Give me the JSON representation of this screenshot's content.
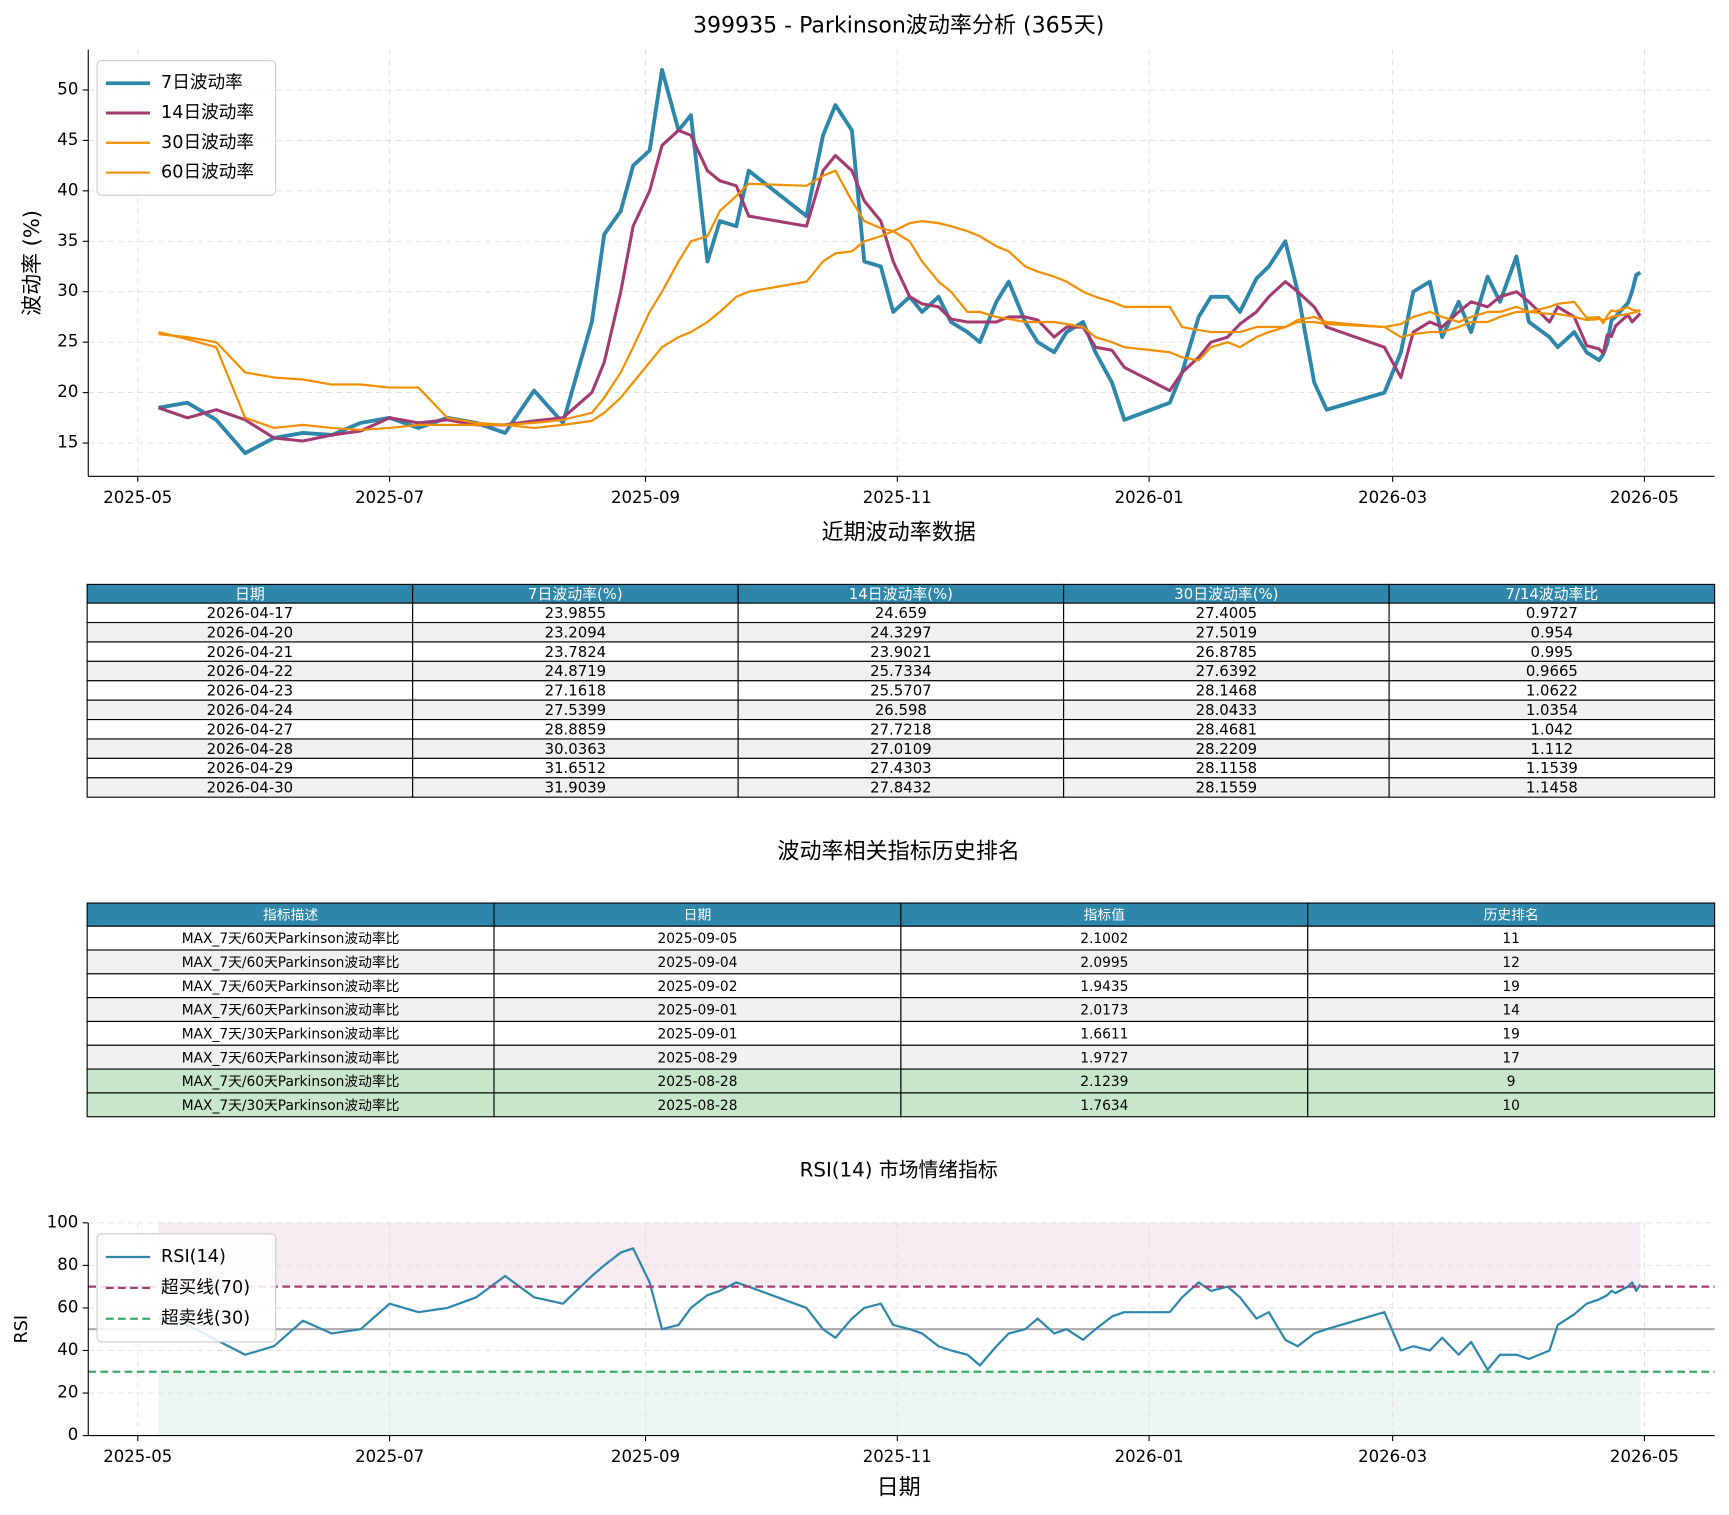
{
  "chart_data": [
    {
      "type": "line",
      "title": "399935 - Parkinson波动率分析 (365天)",
      "y_label": "波动率 (%)",
      "x": [
        "2025-05-06",
        "2025-05-13",
        "2025-05-20",
        "2025-05-27",
        "2025-06-03",
        "2025-06-10",
        "2025-06-17",
        "2025-06-24",
        "2025-07-01",
        "2025-07-08",
        "2025-07-15",
        "2025-07-22",
        "2025-07-29",
        "2025-08-05",
        "2025-08-12",
        "2025-08-19",
        "2025-08-22",
        "2025-08-26",
        "2025-08-29",
        "2025-09-02",
        "2025-09-05",
        "2025-09-09",
        "2025-09-12",
        "2025-09-16",
        "2025-09-19",
        "2025-09-23",
        "2025-09-26",
        "2025-10-10",
        "2025-10-14",
        "2025-10-17",
        "2025-10-21",
        "2025-10-24",
        "2025-10-28",
        "2025-10-31",
        "2025-11-04",
        "2025-11-07",
        "2025-11-11",
        "2025-11-14",
        "2025-11-18",
        "2025-11-21",
        "2025-11-25",
        "2025-11-28",
        "2025-12-02",
        "2025-12-05",
        "2025-12-09",
        "2025-12-12",
        "2025-12-16",
        "2025-12-19",
        "2025-12-23",
        "2025-12-26",
        "2026-01-06",
        "2026-01-09",
        "2026-01-13",
        "2026-01-16",
        "2026-01-20",
        "2026-01-23",
        "2026-01-27",
        "2026-01-30",
        "2026-02-03",
        "2026-02-06",
        "2026-02-10",
        "2026-02-13",
        "2026-02-27",
        "2026-03-03",
        "2026-03-06",
        "2026-03-10",
        "2026-03-13",
        "2026-03-17",
        "2026-03-20",
        "2026-03-24",
        "2026-03-27",
        "2026-03-31",
        "2026-04-03",
        "2026-04-08",
        "2026-04-10",
        "2026-04-14",
        "2026-04-17",
        "2026-04-20",
        "2026-04-21",
        "2026-04-22",
        "2026-04-23",
        "2026-04-24",
        "2026-04-27",
        "2026-04-28",
        "2026-04-29",
        "2026-04-30"
      ],
      "series": [
        {
          "name": "7日波动率",
          "color": "#2e86ab",
          "width": 3.5,
          "values": [
            18.5,
            19,
            17.3,
            14,
            15.5,
            16,
            15.8,
            17,
            17.5,
            16.5,
            17.5,
            17,
            16,
            20.2,
            17,
            27,
            35.7,
            38,
            42.5,
            44,
            52,
            46,
            47.5,
            33,
            37,
            36.5,
            42,
            37.5,
            45.5,
            48.5,
            46,
            33,
            32.5,
            28,
            29.5,
            28,
            29.5,
            27,
            26,
            25,
            29,
            31,
            27,
            25,
            24,
            26,
            27,
            24,
            21,
            17.3,
            19,
            22,
            27.5,
            29.5,
            29.5,
            28,
            31.3,
            32.5,
            35,
            30,
            21,
            18.3,
            20,
            24,
            30,
            31,
            25.5,
            29,
            26,
            31.5,
            29,
            33.5,
            27,
            25.5,
            24.5,
            26,
            23.9855,
            23.2094,
            23.7824,
            24.8719,
            27.1618,
            27.5399,
            28.8859,
            30.0363,
            31.6512,
            31.9039
          ]
        },
        {
          "name": "14日波动率",
          "color": "#a23b72",
          "width": 2.8,
          "values": [
            18.5,
            17.5,
            18.3,
            17.3,
            15.5,
            15.2,
            15.8,
            16.2,
            17.5,
            17,
            17.3,
            16.8,
            16.8,
            17.2,
            17.5,
            20,
            23,
            30,
            36.5,
            40,
            44.5,
            46,
            45.5,
            42,
            41,
            40.5,
            37.5,
            36.5,
            42,
            43.5,
            42,
            39,
            37,
            33,
            29.5,
            28.8,
            28.5,
            27.3,
            27,
            27,
            27,
            27.5,
            27.5,
            27.2,
            25.5,
            26.5,
            26.5,
            24.5,
            24.2,
            22.5,
            20.2,
            22,
            23.5,
            25,
            25.5,
            26.8,
            28,
            29.5,
            31,
            30,
            28.5,
            26.5,
            24.5,
            21.5,
            26,
            27,
            26.5,
            28,
            29,
            28.5,
            29.5,
            30,
            29,
            27,
            28.5,
            27.5,
            24.659,
            24.3297,
            23.9021,
            25.7334,
            25.5707,
            26.598,
            27.7218,
            27.0109,
            27.4303,
            27.8432
          ]
        },
        {
          "name": "30日波动率",
          "color": "#f18f01",
          "width": 2,
          "values": [
            26,
            25.3,
            24.5,
            17.5,
            16.5,
            16.8,
            16.5,
            16.3,
            16.5,
            16.8,
            16.8,
            16.8,
            16.8,
            17,
            17.3,
            18,
            19.5,
            22,
            24.5,
            28,
            30,
            33,
            35,
            35.5,
            38,
            39.5,
            40.7,
            40.5,
            41.5,
            42,
            39,
            37,
            36.3,
            36,
            35,
            33,
            31,
            30,
            28,
            28,
            27.5,
            27.3,
            27,
            27,
            27,
            26.8,
            26.5,
            25.5,
            25,
            24.5,
            24,
            23.5,
            23.2,
            24.5,
            25,
            24.5,
            25.5,
            26,
            26.5,
            27.2,
            27.5,
            27,
            26.5,
            26.8,
            27.5,
            28,
            27.5,
            27,
            27.5,
            28,
            28,
            28.5,
            28,
            28.5,
            28.8,
            29,
            27.4005,
            27.5019,
            26.8785,
            27.6392,
            28.1468,
            28.0433,
            28.4681,
            28.2209,
            28.1158,
            28.1559
          ]
        },
        {
          "name": "60日波动率",
          "color": "#f18f01",
          "width": 2,
          "values": [
            25.8,
            25.5,
            25,
            22,
            21.5,
            21.3,
            20.8,
            20.8,
            20.5,
            20.5,
            17.5,
            17,
            16.8,
            16.5,
            16.8,
            17.2,
            18,
            19.5,
            21,
            23,
            24.5,
            25.5,
            26,
            27,
            28,
            29.5,
            30,
            31,
            33,
            33.8,
            34,
            35,
            35.5,
            36,
            36.8,
            37,
            36.8,
            36.5,
            36,
            35.5,
            34.5,
            34,
            32.5,
            32,
            31.5,
            31,
            30,
            29.5,
            29,
            28.5,
            28.5,
            26.5,
            26.2,
            26,
            26,
            26,
            26.5,
            26.5,
            26.5,
            27,
            27,
            26.8,
            26.5,
            25.5,
            25.8,
            26,
            26,
            26.5,
            27,
            27,
            27.5,
            28,
            28,
            27.8,
            27.8,
            27.5,
            27.2,
            27.3,
            27.2,
            27.3,
            27.5,
            27.6,
            27.8,
            27.9,
            28,
            28.1
          ]
        }
      ],
      "xlim": [
        "2025-04-19",
        "2026-05-18"
      ],
      "xticks": [
        {
          "value": "2025-05-01",
          "label": "2025-05"
        },
        {
          "value": "2025-07-01",
          "label": "2025-07"
        },
        {
          "value": "2025-09-01",
          "label": "2025-09"
        },
        {
          "value": "2025-11-01",
          "label": "2025-11"
        },
        {
          "value": "2026-01-01",
          "label": "2026-01"
        },
        {
          "value": "2026-03-01",
          "label": "2026-03"
        },
        {
          "value": "2026-05-01",
          "label": "2026-05"
        }
      ],
      "ylim": [
        11.7,
        54.0
      ],
      "yticks": [
        15,
        20,
        25,
        30,
        35,
        40,
        45,
        50
      ],
      "grid": true,
      "legend": "upper left"
    },
    {
      "type": "line",
      "title": "RSI(14) 市场情绪指标",
      "x_label": "日期",
      "y_label": "RSI",
      "x": [
        "2025-05-06",
        "2025-05-13",
        "2025-05-20",
        "2025-05-27",
        "2025-06-03",
        "2025-06-10",
        "2025-06-17",
        "2025-06-24",
        "2025-07-01",
        "2025-07-08",
        "2025-07-15",
        "2025-07-22",
        "2025-07-29",
        "2025-08-05",
        "2025-08-12",
        "2025-08-19",
        "2025-08-22",
        "2025-08-26",
        "2025-08-29",
        "2025-09-02",
        "2025-09-05",
        "2025-09-09",
        "2025-09-12",
        "2025-09-16",
        "2025-09-19",
        "2025-09-23",
        "2025-09-26",
        "2025-10-10",
        "2025-10-14",
        "2025-10-17",
        "2025-10-21",
        "2025-10-24",
        "2025-10-28",
        "2025-10-31",
        "2025-11-04",
        "2025-11-07",
        "2025-11-11",
        "2025-11-14",
        "2025-11-18",
        "2025-11-21",
        "2025-11-25",
        "2025-11-28",
        "2025-12-02",
        "2025-12-05",
        "2025-12-09",
        "2025-12-12",
        "2025-12-16",
        "2025-12-19",
        "2025-12-23",
        "2025-12-26",
        "2026-01-06",
        "2026-01-09",
        "2026-01-13",
        "2026-01-16",
        "2026-01-20",
        "2026-01-23",
        "2026-01-27",
        "2026-01-30",
        "2026-02-03",
        "2026-02-06",
        "2026-02-10",
        "2026-02-13",
        "2026-02-27",
        "2026-03-03",
        "2026-03-06",
        "2026-03-10",
        "2026-03-13",
        "2026-03-17",
        "2026-03-20",
        "2026-03-24",
        "2026-03-27",
        "2026-03-31",
        "2026-04-03",
        "2026-04-08",
        "2026-04-10",
        "2026-04-14",
        "2026-04-17",
        "2026-04-20",
        "2026-04-21",
        "2026-04-22",
        "2026-04-23",
        "2026-04-24",
        "2026-04-27",
        "2026-04-28",
        "2026-04-29",
        "2026-04-30"
      ],
      "series": [
        {
          "name": "RSI(14)",
          "color": "#2e86ab",
          "width": 2,
          "values": [
            55,
            52,
            45,
            38,
            42,
            54,
            48,
            50,
            62,
            58,
            60,
            65,
            75,
            65,
            62,
            75,
            80,
            86,
            88,
            72,
            50,
            52,
            60,
            66,
            68,
            72,
            70,
            60,
            50,
            46,
            55,
            60,
            62,
            52,
            50,
            48,
            42,
            40,
            38,
            33,
            42,
            48,
            50,
            55,
            48,
            50,
            45,
            50,
            56,
            58,
            58,
            65,
            72,
            68,
            70,
            65,
            55,
            58,
            45,
            42,
            48,
            50,
            58,
            40,
            42,
            40,
            46,
            38,
            44,
            31,
            38,
            38,
            36,
            40,
            52,
            57,
            62,
            64,
            65,
            66,
            68,
            67,
            70,
            72,
            68,
            71
          ]
        }
      ],
      "hlines": [
        {
          "name": "超买线(70)",
          "value": 70,
          "color": "#a23b72"
        },
        {
          "name": "超卖线(30)",
          "value": 30,
          "color": "#3aaa6a"
        }
      ],
      "midline": 50,
      "bands": [
        {
          "from": 70,
          "to": 100,
          "color": "#a23b72"
        },
        {
          "from": 0,
          "to": 30,
          "color": "#3aaa6a"
        }
      ],
      "xlim": [
        "2025-04-19",
        "2026-05-18"
      ],
      "xticks": [
        {
          "value": "2025-05-01",
          "label": "2025-05"
        },
        {
          "value": "2025-07-01",
          "label": "2025-07"
        },
        {
          "value": "2025-09-01",
          "label": "2025-09"
        },
        {
          "value": "2025-11-01",
          "label": "2025-11"
        },
        {
          "value": "2026-01-01",
          "label": "2026-01"
        },
        {
          "value": "2026-03-01",
          "label": "2026-03"
        },
        {
          "value": "2026-05-01",
          "label": "2026-05"
        }
      ],
      "ylim": [
        0,
        100
      ],
      "yticks": [
        0,
        20,
        40,
        60,
        80,
        100
      ],
      "grid": true,
      "legend": "upper left"
    }
  ],
  "recent_table": {
    "title": "近期波动率数据",
    "header_color": "#2e86ab",
    "columns": [
      "日期",
      "7日波动率(%)",
      "14日波动率(%)",
      "30日波动率(%)",
      "7/14波动率比"
    ],
    "rows": [
      [
        "2026-04-17",
        23.9855,
        24.659,
        27.4005,
        0.9727
      ],
      [
        "2026-04-20",
        23.2094,
        24.3297,
        27.5019,
        0.954
      ],
      [
        "2026-04-21",
        23.7824,
        23.9021,
        26.8785,
        0.995
      ],
      [
        "2026-04-22",
        24.8719,
        25.7334,
        27.6392,
        0.9665
      ],
      [
        "2026-04-23",
        27.1618,
        25.5707,
        28.1468,
        1.0622
      ],
      [
        "2026-04-24",
        27.5399,
        26.598,
        28.0433,
        1.0354
      ],
      [
        "2026-04-27",
        28.8859,
        27.7218,
        28.4681,
        1.042
      ],
      [
        "2026-04-28",
        30.0363,
        27.0109,
        28.2209,
        1.112
      ],
      [
        "2026-04-29",
        31.6512,
        27.4303,
        28.1158,
        1.1539
      ],
      [
        "2026-04-30",
        31.9039,
        27.8432,
        28.1559,
        1.1458
      ]
    ]
  },
  "rank_table": {
    "title": "波动率相关指标历史排名",
    "header_color": "#2e86ab",
    "highlight_color": "#c8e6c9",
    "highlight_rows": [
      6,
      7
    ],
    "columns": [
      "指标描述",
      "日期",
      "指标值",
      "历史排名"
    ],
    "rows": [
      [
        "MAX_7天/60天Parkinson波动率比",
        "2025-09-05",
        2.1002,
        11
      ],
      [
        "MAX_7天/60天Parkinson波动率比",
        "2025-09-04",
        2.0995,
        12
      ],
      [
        "MAX_7天/60天Parkinson波动率比",
        "2025-09-02",
        1.9435,
        19
      ],
      [
        "MAX_7天/60天Parkinson波动率比",
        "2025-09-01",
        2.0173,
        14
      ],
      [
        "MAX_7天/30天Parkinson波动率比",
        "2025-09-01",
        1.6611,
        19
      ],
      [
        "MAX_7天/60天Parkinson波动率比",
        "2025-08-29",
        1.9727,
        17
      ],
      [
        "MAX_7天/60天Parkinson波动率比",
        "2025-08-28",
        2.1239,
        9
      ],
      [
        "MAX_7天/30天Parkinson波动率比",
        "2025-08-28",
        1.7634,
        10
      ]
    ]
  }
}
